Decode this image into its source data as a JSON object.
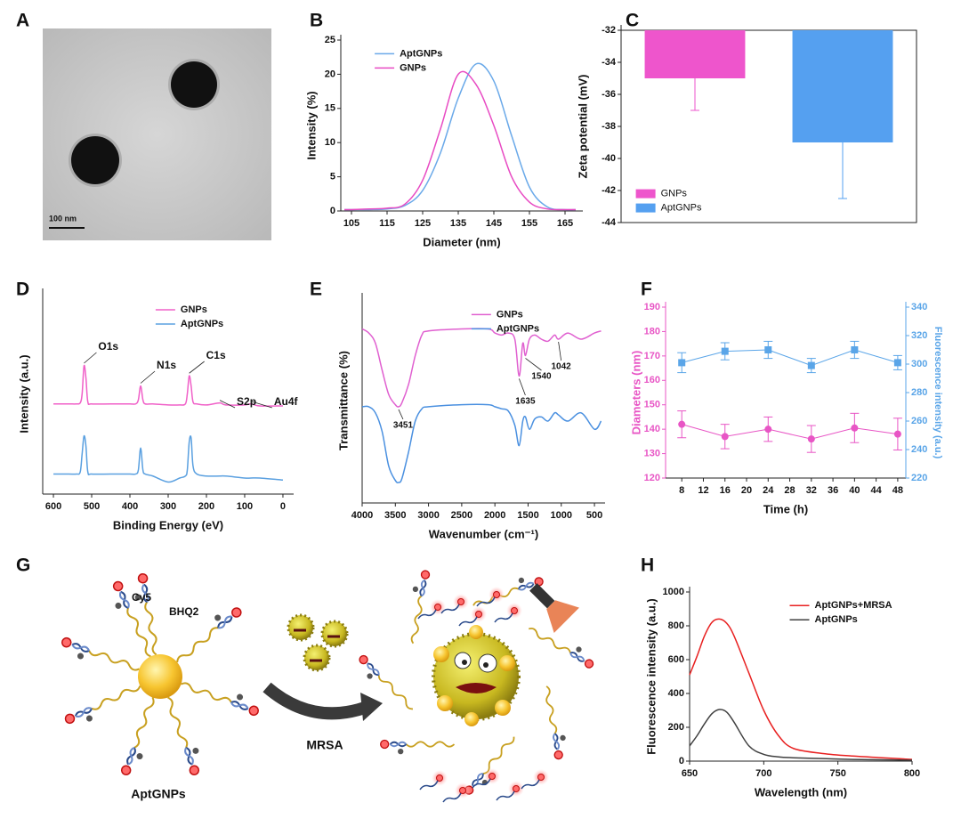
{
  "panel_labels": [
    "A",
    "B",
    "C",
    "D",
    "E",
    "F",
    "G",
    "H"
  ],
  "image_a": {
    "scale_bar": "100 nm"
  },
  "diagram_g": {
    "labels": [
      "Cy5",
      "BHQ2",
      "MRSA",
      "AptGNPs"
    ]
  },
  "chart_data": [
    {
      "type": "line",
      "x_label": "Diameter (nm)",
      "y_label": "Intensity (%)",
      "x": [
        103,
        105,
        110,
        115,
        120,
        125,
        130,
        135,
        140,
        145,
        150,
        155,
        160,
        165,
        168
      ],
      "xlim": [
        102,
        170
      ],
      "xticks": [
        105,
        115,
        125,
        135,
        145,
        155,
        165
      ],
      "ylim": [
        0,
        25
      ],
      "yticks": [
        0,
        5,
        10,
        15,
        20,
        25
      ],
      "legend": "upper left",
      "series": [
        {
          "name": "AptGNPs",
          "color": "#6aa9e9",
          "values": [
            0.2,
            0.2,
            0.2,
            0.3,
            0.8,
            3,
            8.5,
            16.5,
            21.5,
            19,
            11,
            3.5,
            0.6,
            0.2,
            0.2
          ]
        },
        {
          "name": "GNPs",
          "color": "#e84bc3",
          "values": [
            0.2,
            0.2,
            0.3,
            0.4,
            1,
            4.5,
            12,
            20,
            18.5,
            12.5,
            5,
            1.3,
            0.3,
            0.2,
            0.2
          ]
        }
      ]
    },
    {
      "type": "bar",
      "y_label": "Zeta potential (mV)",
      "ylim": [
        -44,
        -32
      ],
      "yticks": [
        -44,
        -42,
        -40,
        -38,
        -36,
        -34,
        -32
      ],
      "legend": "lower left",
      "series": [
        {
          "name": "GNPs",
          "color": "#ee55cc",
          "values": [
            -35
          ],
          "errors": [
            2
          ]
        },
        {
          "name": "AptGNPs",
          "color": "#55a0f0",
          "values": [
            -39
          ],
          "errors": [
            3.5
          ]
        }
      ]
    },
    {
      "type": "line",
      "x_label": "Binding Energy (eV)",
      "y_label": "Intensity (a.u.)",
      "x": [
        600,
        560,
        540,
        530,
        525,
        520,
        515,
        510,
        500,
        450,
        400,
        385,
        378,
        372,
        366,
        360,
        340,
        300,
        270,
        255,
        250,
        245,
        240,
        235,
        225,
        200,
        165,
        150,
        100,
        84,
        60,
        0
      ],
      "xlim": [
        628,
        -28
      ],
      "xticks": [
        600,
        500,
        400,
        300,
        200,
        100,
        0
      ],
      "ylim": [
        0,
        100
      ],
      "legend": "upper center",
      "annotations": [
        {
          "text": "O1s",
          "x": 520
        },
        {
          "text": "N1s",
          "x": 372
        },
        {
          "text": "C1s",
          "x": 245
        },
        {
          "text": "S2p",
          "x": 165
        },
        {
          "text": "Au4f",
          "x": 84
        }
      ],
      "series": [
        {
          "name": "GNPs",
          "color": "#f060c8",
          "values": [
            45,
            45,
            45,
            45.5,
            50,
            64,
            58,
            46,
            45,
            45,
            45,
            45,
            47,
            54,
            47,
            45,
            45,
            44.5,
            44.5,
            45,
            50,
            59,
            54,
            46,
            45,
            44.5,
            45.5,
            44.5,
            44.5,
            45,
            44,
            44
          ]
        },
        {
          "name": "AptGNPs",
          "color": "#5aa0e0",
          "values": [
            10,
            10,
            10,
            11,
            20,
            29,
            24,
            11,
            10,
            10,
            10,
            10,
            12,
            23,
            12,
            10,
            9,
            6,
            8,
            9,
            12,
            26,
            28,
            14,
            10,
            9,
            9,
            9,
            8,
            8,
            8,
            7
          ]
        }
      ]
    },
    {
      "type": "line",
      "x_label": "Wavenumber (cm⁻¹)",
      "y_label": "Transmittance (%)",
      "x": [
        4000,
        3900,
        3800,
        3700,
        3600,
        3500,
        3451,
        3400,
        3300,
        3200,
        3100,
        3000,
        2500,
        2100,
        2000,
        1900,
        1800,
        1700,
        1635,
        1580,
        1540,
        1480,
        1400,
        1300,
        1200,
        1100,
        1042,
        900,
        700,
        500,
        400
      ],
      "xlim": [
        4000,
        340
      ],
      "xticks": [
        4000,
        3500,
        3000,
        2500,
        2000,
        1500,
        1000,
        500
      ],
      "ylim": [
        0,
        100
      ],
      "legend": "upper center",
      "annotations": [
        3451,
        1635,
        1540,
        1042
      ],
      "series": [
        {
          "name": "GNPs",
          "color": "#e060d0",
          "values": [
            85,
            83,
            78,
            65,
            53,
            48,
            47,
            49,
            58,
            72,
            82,
            84,
            85,
            85,
            83,
            82,
            83,
            80,
            62,
            78,
            72,
            80,
            82,
            80,
            79,
            82,
            80,
            83,
            80,
            83,
            84
          ]
        },
        {
          "name": "AptGNPs",
          "color": "#4a90e0",
          "values": [
            47,
            47,
            44,
            35,
            18,
            11,
            10,
            12,
            25,
            40,
            46,
            47,
            48,
            48,
            47,
            46,
            45,
            38,
            28,
            40,
            42,
            36,
            41,
            42,
            40,
            44,
            43,
            40,
            44,
            36,
            40
          ]
        }
      ]
    },
    {
      "type": "line",
      "x_label": "Time (h)",
      "y_label": "Diameters (nm)",
      "y2_label": "Fluorescence intensity (a.u.)",
      "x": [
        8,
        16,
        24,
        32,
        40,
        48
      ],
      "xlim": [
        5,
        49.5
      ],
      "xticks": [
        8,
        12,
        16,
        20,
        24,
        28,
        32,
        36,
        40,
        44,
        48
      ],
      "ylim": [
        120,
        190
      ],
      "yticks": [
        120,
        130,
        140,
        150,
        160,
        170,
        180,
        190
      ],
      "y2lim": [
        220,
        340
      ],
      "y2ticks": [
        220,
        240,
        260,
        280,
        300,
        320,
        340
      ],
      "series": [
        {
          "color": "#e855c5",
          "marker": "circle",
          "values": [
            142,
            137,
            140,
            136,
            140.5,
            138
          ],
          "errors": [
            5.5,
            5,
            5,
            5.5,
            6,
            6.5
          ]
        },
        {
          "color": "#5aa5e8",
          "marker": "square",
          "axis": "y2",
          "values": [
            301,
            309,
            310,
            299,
            310,
            301
          ],
          "errors": [
            7,
            6,
            6,
            5,
            6,
            5
          ]
        }
      ]
    },
    {
      "type": "line",
      "x_label": "Wavelength (nm)",
      "y_label": "Fluorescence intensity (a.u.)",
      "x": [
        650,
        655,
        660,
        665,
        670,
        675,
        680,
        690,
        700,
        710,
        720,
        740,
        760,
        780,
        800
      ],
      "xlim": [
        650,
        800
      ],
      "xticks": [
        650,
        700,
        750,
        800
      ],
      "ylim": [
        0,
        1000
      ],
      "yticks": [
        0,
        200,
        400,
        600,
        800,
        1000
      ],
      "legend": "upper center",
      "series": [
        {
          "name": "AptGNPs+MRSA",
          "color": "#e82020",
          "values": [
            510,
            620,
            740,
            820,
            840,
            815,
            740,
            520,
            300,
            150,
            75,
            45,
            30,
            20,
            10
          ]
        },
        {
          "name": "AptGNPs",
          "color": "#404040",
          "values": [
            90,
            150,
            220,
            280,
            305,
            290,
            230,
            90,
            40,
            25,
            20,
            15,
            10,
            8,
            5
          ]
        }
      ]
    }
  ]
}
